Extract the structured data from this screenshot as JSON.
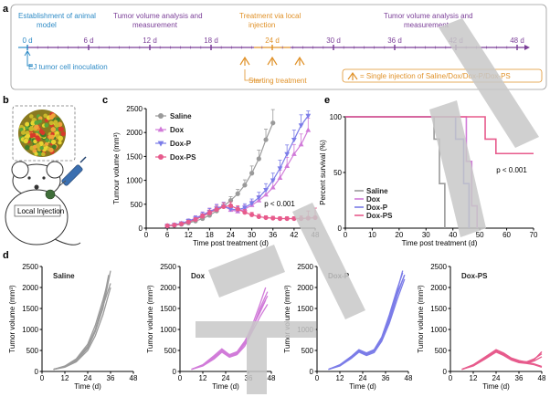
{
  "panels": {
    "a": "a",
    "b": "b",
    "c": "c",
    "d": "d",
    "e": "e"
  },
  "colors": {
    "blue": "#2E8BC6",
    "purple": "#7B3F98",
    "orange": "#E0922A",
    "saline": "#9A9A9A",
    "dox": "#D17BD9",
    "doxp": "#7B7CE8",
    "doxps": "#E75B8C",
    "watermark": "#c8c8c8"
  },
  "timeline": {
    "headers": [
      {
        "text": "Establishment of animal",
        "text2": "model",
        "color": "blue"
      },
      {
        "text": "Tumor volume analysis and",
        "text2": "measurement",
        "color": "purple"
      },
      {
        "text": "Treatment via local",
        "text2": "injection",
        "color": "orange"
      },
      {
        "text": "Tumor volume analysis and",
        "text2": "measurement",
        "color": "purple"
      }
    ],
    "ticks": [
      "0 d",
      "6 d",
      "12 d",
      "18 d",
      "24 d",
      "30 d",
      "36 d",
      "42 d",
      "48 d"
    ],
    "tick_colors": [
      "blue",
      "purple",
      "purple",
      "purple",
      "orange",
      "purple",
      "purple",
      "purple",
      "purple"
    ],
    "inoculation_label": "EJ tumor cell inoculation",
    "starting_label": "Starting treatment",
    "injection_legend": "= Single injection of Saline/Dox/Dox-P/Dox-PS"
  },
  "mouse": {
    "label": "Local Injection"
  },
  "chart_data": [
    {
      "id": "c",
      "type": "line",
      "xlabel": "Time post treatment (d)",
      "ylabel": "Tumour volume (mm³)",
      "xticks": [
        0,
        6,
        12,
        18,
        24,
        30,
        36,
        42,
        48
      ],
      "yticks": [
        0,
        500,
        1000,
        1500,
        2000,
        2500
      ],
      "xlim": [
        0,
        48
      ],
      "ylim": [
        0,
        2500
      ],
      "annotation": "p < 0.001",
      "legend_position": "top-left",
      "series": [
        {
          "name": "Saline",
          "color": "saline",
          "marker": "circle",
          "x": [
            6,
            8,
            10,
            12,
            14,
            16,
            18,
            20,
            22,
            24,
            26,
            28,
            30,
            32,
            34,
            36
          ],
          "y": [
            50,
            60,
            80,
            110,
            150,
            200,
            270,
            360,
            460,
            580,
            720,
            900,
            1150,
            1450,
            1850,
            2200
          ],
          "err": [
            20,
            20,
            25,
            30,
            35,
            40,
            45,
            55,
            70,
            80,
            90,
            110,
            150,
            180,
            220,
            280
          ]
        },
        {
          "name": "Dox",
          "color": "dox",
          "marker": "triangle",
          "x": [
            6,
            8,
            10,
            12,
            14,
            16,
            18,
            20,
            22,
            24,
            26,
            28,
            30,
            32,
            34,
            36,
            38,
            40,
            42,
            44,
            46
          ],
          "y": [
            50,
            70,
            100,
            150,
            210,
            280,
            350,
            420,
            460,
            380,
            350,
            400,
            480,
            580,
            700,
            850,
            1050,
            1300,
            1550,
            1750,
            2050
          ],
          "err": [
            20,
            25,
            30,
            40,
            50,
            60,
            70,
            80,
            80,
            70,
            70,
            80,
            90,
            100,
            120,
            140,
            160,
            180,
            200,
            220,
            250
          ]
        },
        {
          "name": "Dox-P",
          "color": "doxp",
          "marker": "triangle-down",
          "x": [
            6,
            8,
            10,
            12,
            14,
            16,
            18,
            20,
            22,
            24,
            26,
            28,
            30,
            32,
            34,
            36,
            38,
            40,
            42,
            44,
            46
          ],
          "y": [
            50,
            70,
            100,
            150,
            200,
            270,
            340,
            410,
            460,
            400,
            380,
            430,
            520,
            640,
            800,
            1000,
            1250,
            1550,
            1850,
            2150,
            2350
          ],
          "err": [
            20,
            25,
            30,
            40,
            50,
            60,
            70,
            80,
            80,
            70,
            70,
            80,
            90,
            110,
            130,
            150,
            170,
            190,
            200,
            220,
            100
          ]
        },
        {
          "name": "Dox-PS",
          "color": "doxps",
          "marker": "circle",
          "x": [
            6,
            8,
            10,
            12,
            14,
            16,
            18,
            20,
            22,
            24,
            26,
            28,
            30,
            32,
            34,
            36,
            38,
            40,
            42,
            44,
            46,
            48
          ],
          "y": [
            50,
            65,
            90,
            130,
            180,
            250,
            320,
            390,
            450,
            470,
            400,
            330,
            280,
            240,
            220,
            210,
            200,
            200,
            200,
            200,
            210,
            220
          ],
          "err": [
            20,
            20,
            25,
            30,
            40,
            50,
            60,
            70,
            80,
            80,
            70,
            60,
            50,
            50,
            40,
            40,
            40,
            40,
            40,
            60,
            150,
            200
          ]
        }
      ]
    },
    {
      "id": "e",
      "type": "line",
      "xlabel": "Time post treatment (d)",
      "ylabel": "Percent survival (%)",
      "xticks": [
        0,
        10,
        20,
        30,
        40,
        50,
        60,
        70
      ],
      "yticks": [
        0,
        50,
        100
      ],
      "xlim": [
        0,
        70
      ],
      "ylim": [
        0,
        100
      ],
      "annotation": "p < 0.001",
      "legend_position": "bottom-left",
      "series": [
        {
          "name": "Saline",
          "color": "saline",
          "x": [
            0,
            33,
            33,
            35,
            35,
            37,
            37
          ],
          "y": [
            100,
            100,
            80,
            80,
            40,
            40,
            0
          ]
        },
        {
          "name": "Dox",
          "color": "dox",
          "x": [
            0,
            45,
            45,
            47,
            47,
            49,
            49
          ],
          "y": [
            100,
            100,
            60,
            60,
            20,
            20,
            0
          ]
        },
        {
          "name": "Dox-P",
          "color": "doxp",
          "x": [
            0,
            41,
            41,
            44,
            44,
            46,
            46
          ],
          "y": [
            100,
            100,
            80,
            80,
            40,
            40,
            0
          ]
        },
        {
          "name": "Dox-PS",
          "color": "doxps",
          "x": [
            0,
            52,
            52,
            56,
            56,
            62,
            62,
            70
          ],
          "y": [
            100,
            100,
            80,
            80,
            67,
            67,
            67,
            67
          ]
        }
      ]
    },
    {
      "id": "d1",
      "type": "line",
      "title": "Saline",
      "color": "saline",
      "xlabel": "Time (d)",
      "ylabel": "Tumor volume (mm³)",
      "xticks": [
        0,
        12,
        24,
        36,
        48
      ],
      "yticks": [
        0,
        500,
        1000,
        1500,
        2000,
        2500
      ],
      "xlim": [
        0,
        48
      ],
      "ylim": [
        0,
        2500
      ],
      "series": [
        {
          "x": [
            6,
            12,
            18,
            24,
            28,
            32,
            35
          ],
          "y": [
            50,
            120,
            280,
            600,
            1000,
            1600,
            2300
          ]
        },
        {
          "x": [
            6,
            12,
            18,
            24,
            28,
            32,
            36
          ],
          "y": [
            50,
            110,
            250,
            550,
            950,
            1500,
            2400
          ]
        },
        {
          "x": [
            6,
            12,
            18,
            24,
            28,
            32,
            35
          ],
          "y": [
            50,
            130,
            300,
            650,
            1100,
            1700,
            2200
          ]
        },
        {
          "x": [
            6,
            12,
            18,
            24,
            28,
            32,
            36
          ],
          "y": [
            50,
            100,
            230,
            500,
            850,
            1350,
            2000
          ]
        },
        {
          "x": [
            6,
            12,
            18,
            24,
            28,
            32,
            36
          ],
          "y": [
            50,
            120,
            260,
            580,
            980,
            1550,
            2100
          ]
        }
      ]
    },
    {
      "id": "d2",
      "type": "line",
      "title": "Dox",
      "color": "dox",
      "xlabel": "Time (d)",
      "ylabel": "Tumor volume (mm³)",
      "xticks": [
        0,
        12,
        24,
        36,
        48
      ],
      "yticks": [
        0,
        500,
        1000,
        1500,
        2000,
        2500
      ],
      "xlim": [
        0,
        48
      ],
      "ylim": [
        0,
        2500
      ],
      "series": [
        {
          "x": [
            6,
            12,
            18,
            22,
            26,
            30,
            34,
            38,
            42,
            45
          ],
          "y": [
            50,
            150,
            350,
            500,
            380,
            450,
            700,
            1100,
            1600,
            2000
          ]
        },
        {
          "x": [
            6,
            12,
            18,
            22,
            26,
            30,
            34,
            38,
            42,
            46
          ],
          "y": [
            50,
            140,
            320,
            480,
            360,
            420,
            650,
            1000,
            1500,
            1900
          ]
        },
        {
          "x": [
            6,
            12,
            18,
            22,
            26,
            30,
            34,
            38,
            42,
            45
          ],
          "y": [
            50,
            160,
            380,
            540,
            400,
            470,
            720,
            1050,
            1400,
            1700
          ]
        },
        {
          "x": [
            6,
            12,
            18,
            22,
            26,
            30,
            34,
            38,
            42,
            46
          ],
          "y": [
            50,
            130,
            300,
            460,
            340,
            400,
            600,
            950,
            1300,
            1600
          ]
        },
        {
          "x": [
            6,
            12,
            18,
            22,
            26,
            30,
            34,
            38,
            42,
            46
          ],
          "y": [
            50,
            150,
            340,
            510,
            390,
            440,
            680,
            1020,
            1450,
            1800
          ]
        }
      ]
    },
    {
      "id": "d3",
      "type": "line",
      "title": "Dox-P",
      "color": "doxp",
      "xlabel": "Time (d)",
      "ylabel": "Tumor volume (mm³)",
      "xticks": [
        0,
        12,
        24,
        36,
        48
      ],
      "yticks": [
        0,
        500,
        1000,
        1500,
        2000,
        2500
      ],
      "xlim": [
        0,
        48
      ],
      "ylim": [
        0,
        2500
      ],
      "series": [
        {
          "x": [
            6,
            12,
            18,
            22,
            26,
            30,
            34,
            38,
            42,
            45
          ],
          "y": [
            50,
            150,
            350,
            500,
            420,
            500,
            800,
            1300,
            1900,
            2400
          ]
        },
        {
          "x": [
            6,
            12,
            18,
            22,
            26,
            30,
            34,
            38,
            42,
            46
          ],
          "y": [
            50,
            140,
            330,
            480,
            400,
            480,
            760,
            1200,
            1800,
            2300
          ]
        },
        {
          "x": [
            6,
            12,
            18,
            22,
            26,
            30,
            34,
            38,
            42,
            45
          ],
          "y": [
            50,
            160,
            360,
            520,
            440,
            520,
            820,
            1350,
            1950,
            2350
          ]
        },
        {
          "x": [
            6,
            12,
            18,
            22,
            26,
            30,
            34,
            38,
            42,
            46
          ],
          "y": [
            50,
            130,
            310,
            460,
            380,
            450,
            720,
            1150,
            1700,
            2200
          ]
        },
        {
          "x": [
            6,
            12,
            18,
            22,
            26,
            30,
            34,
            38,
            42,
            46
          ],
          "y": [
            50,
            150,
            340,
            490,
            410,
            490,
            780,
            1250,
            1850,
            2300
          ]
        }
      ]
    },
    {
      "id": "d4",
      "type": "line",
      "title": "Dox-PS",
      "color": "doxps",
      "xlabel": "Time (d)",
      "ylabel": "Tumor volume (mm³)",
      "xticks": [
        0,
        12,
        24,
        36,
        48
      ],
      "yticks": [
        0,
        500,
        1000,
        1500,
        2000,
        2500
      ],
      "xlim": [
        0,
        48
      ],
      "ylim": [
        0,
        2500
      ],
      "series": [
        {
          "x": [
            6,
            12,
            18,
            24,
            28,
            32,
            36,
            40,
            44,
            48
          ],
          "y": [
            50,
            150,
            320,
            500,
            420,
            300,
            250,
            230,
            300,
            420
          ]
        },
        {
          "x": [
            6,
            12,
            18,
            24,
            28,
            32,
            36,
            40,
            44,
            48
          ],
          "y": [
            50,
            140,
            300,
            480,
            400,
            280,
            220,
            200,
            250,
            350
          ]
        },
        {
          "x": [
            6,
            12,
            18,
            24,
            28,
            32,
            36,
            40,
            44,
            48
          ],
          "y": [
            50,
            160,
            340,
            520,
            440,
            320,
            260,
            220,
            180,
            120
          ]
        },
        {
          "x": [
            6,
            12,
            18,
            24,
            28,
            32,
            36,
            40,
            44,
            48
          ],
          "y": [
            50,
            130,
            290,
            460,
            380,
            270,
            210,
            190,
            160,
            100
          ]
        },
        {
          "x": [
            6,
            12,
            18,
            24,
            28,
            32,
            36,
            40,
            44,
            48
          ],
          "y": [
            50,
            150,
            310,
            490,
            410,
            290,
            240,
            210,
            280,
            470
          ]
        }
      ]
    }
  ]
}
